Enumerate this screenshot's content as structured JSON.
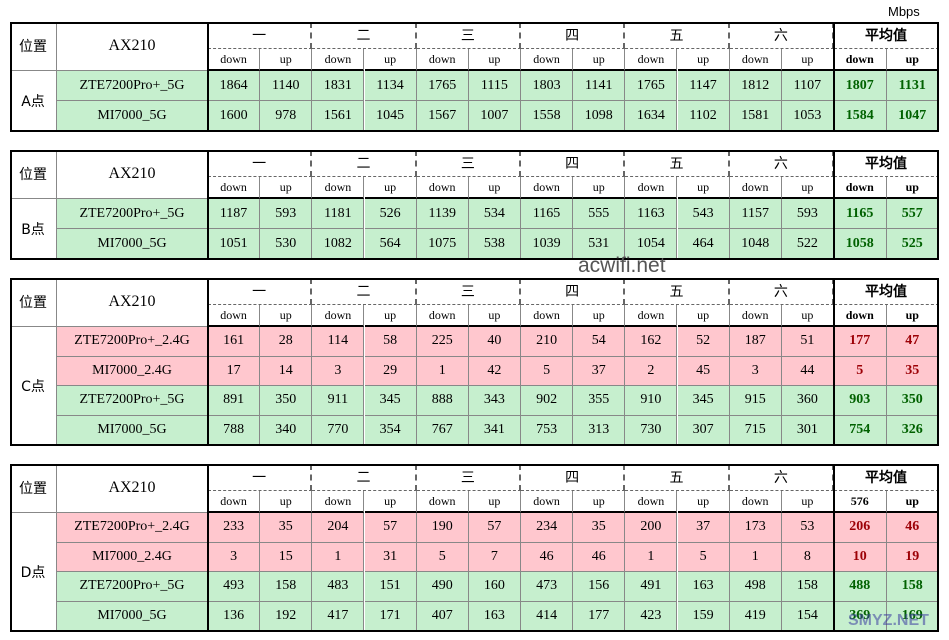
{
  "unit": "Mbps",
  "watermark": "acwifi.net",
  "watermark_corner": "SMYZ.NET",
  "tables": [
    {
      "location_header": "位置",
      "device_header": "AX210",
      "groups": [
        "一",
        "二",
        "三",
        "四",
        "五",
        "六",
        "平均值"
      ],
      "subheaders": [
        "down",
        "up",
        "down",
        "up",
        "down",
        "up",
        "down",
        "up",
        "down",
        "up",
        "down",
        "up",
        "down",
        "up"
      ],
      "point": "A点",
      "rows": [
        {
          "name": "ZTE7200Pro+_5G",
          "fill": "#c6efce",
          "avg_color": "#006100",
          "values": [
            1864,
            1140,
            1831,
            1134,
            1765,
            1115,
            1803,
            1141,
            1765,
            1147,
            1812,
            1107,
            1807,
            1131
          ]
        },
        {
          "name": "MI7000_5G",
          "fill": "#c6efce",
          "avg_color": "#006100",
          "values": [
            1600,
            978,
            1561,
            1045,
            1567,
            1007,
            1558,
            1098,
            1634,
            1102,
            1581,
            1053,
            1584,
            1047
          ]
        }
      ]
    },
    {
      "location_header": "位置",
      "device_header": "AX210",
      "groups": [
        "一",
        "二",
        "三",
        "四",
        "五",
        "六",
        "平均值"
      ],
      "subheaders": [
        "down",
        "up",
        "down",
        "up",
        "down",
        "up",
        "down",
        "up",
        "down",
        "up",
        "down",
        "up",
        "down",
        "up"
      ],
      "point": "B点",
      "rows": [
        {
          "name": "ZTE7200Pro+_5G",
          "fill": "#c6efce",
          "avg_color": "#006100",
          "values": [
            1187,
            593,
            1181,
            526,
            1139,
            534,
            1165,
            555,
            1163,
            543,
            1157,
            593,
            1165,
            557
          ]
        },
        {
          "name": "MI7000_5G",
          "fill": "#c6efce",
          "avg_color": "#006100",
          "values": [
            1051,
            530,
            1082,
            564,
            1075,
            538,
            1039,
            531,
            1054,
            464,
            1048,
            522,
            1058,
            525
          ]
        }
      ]
    },
    {
      "location_header": "位置",
      "device_header": "AX210",
      "groups": [
        "一",
        "二",
        "三",
        "四",
        "五",
        "六",
        "平均值"
      ],
      "subheaders": [
        "down",
        "up",
        "down",
        "up",
        "down",
        "up",
        "down",
        "up",
        "down",
        "up",
        "down",
        "up",
        "down",
        "up"
      ],
      "point": "C点",
      "rows": [
        {
          "name": "ZTE7200Pro+_2.4G",
          "fill": "#ffc7ce",
          "avg_color": "#9c0006",
          "values": [
            161,
            28,
            114,
            58,
            225,
            40,
            210,
            54,
            162,
            52,
            187,
            51,
            177,
            47
          ]
        },
        {
          "name": "MI7000_2.4G",
          "fill": "#ffc7ce",
          "avg_color": "#9c0006",
          "values": [
            17,
            14,
            3,
            29,
            1,
            42,
            5,
            37,
            2,
            45,
            3,
            44,
            5,
            35
          ]
        },
        {
          "name": "ZTE7200Pro+_5G",
          "fill": "#c6efce",
          "avg_color": "#006100",
          "values": [
            891,
            350,
            911,
            345,
            888,
            343,
            902,
            355,
            910,
            345,
            915,
            360,
            903,
            350
          ]
        },
        {
          "name": "MI7000_5G",
          "fill": "#c6efce",
          "avg_color": "#006100",
          "values": [
            788,
            340,
            770,
            354,
            767,
            341,
            753,
            313,
            730,
            307,
            715,
            301,
            754,
            326
          ]
        }
      ]
    },
    {
      "location_header": "位置",
      "device_header": "AX210",
      "groups": [
        "一",
        "二",
        "三",
        "四",
        "五",
        "六",
        "平均值"
      ],
      "subheaders": [
        "down",
        "up",
        "down",
        "up",
        "down",
        "up",
        "down",
        "up",
        "down",
        "up",
        "down",
        "up",
        "576",
        "up"
      ],
      "point": "D点",
      "rows": [
        {
          "name": "ZTE7200Pro+_2.4G",
          "fill": "#ffc7ce",
          "avg_color": "#9c0006",
          "values": [
            233,
            35,
            204,
            57,
            190,
            57,
            234,
            35,
            200,
            37,
            173,
            53,
            206,
            46
          ]
        },
        {
          "name": "MI7000_2.4G",
          "fill": "#ffc7ce",
          "avg_color": "#9c0006",
          "values": [
            3,
            15,
            1,
            31,
            5,
            7,
            46,
            46,
            1,
            5,
            1,
            8,
            10,
            19
          ]
        },
        {
          "name": "ZTE7200Pro+_5G",
          "fill": "#c6efce",
          "avg_color": "#006100",
          "values": [
            493,
            158,
            483,
            151,
            490,
            160,
            473,
            156,
            491,
            163,
            498,
            158,
            488,
            158
          ]
        },
        {
          "name": "MI7000_5G",
          "fill": "#c6efce",
          "avg_color": "#006100",
          "values": [
            136,
            192,
            417,
            171,
            407,
            163,
            414,
            177,
            423,
            159,
            419,
            154,
            369,
            169
          ]
        }
      ]
    }
  ]
}
